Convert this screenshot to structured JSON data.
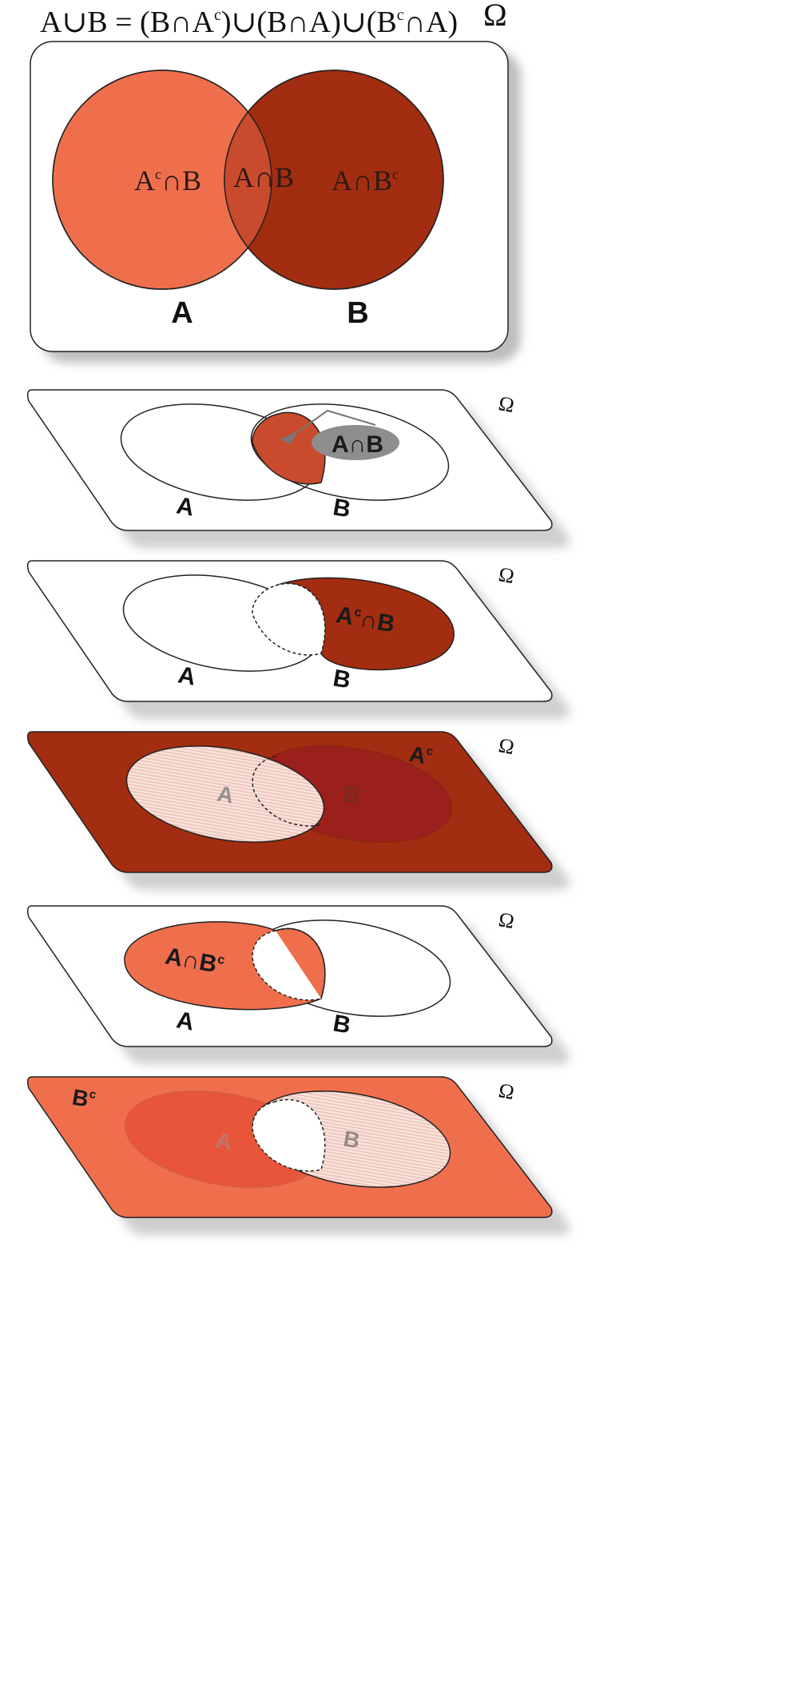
{
  "formula": {
    "lhs": "A∪B = (B∩A",
    "c1": "c",
    "mid1": ")∪(B∩A)∪(B",
    "c2": "c",
    "tail": "∩A)"
  },
  "omega": "Ω",
  "superscript_c": "c",
  "colors": {
    "light": "#ef6f4d",
    "dark": "#a32d10",
    "intersection": "#c94a2c",
    "complement_a_fill": "#f4d4cc",
    "shadow": "#cfcfcf",
    "b_in_ac": "#9b1f1a"
  },
  "main": {
    "region_ac_b": {
      "pre": "A",
      "sup": "c",
      "post": "∩B"
    },
    "region_a_b": "A∩B",
    "region_a_bc": {
      "pre": "A∩B",
      "sup": "c"
    },
    "set_a": "A",
    "set_b": "B"
  },
  "panels": [
    {
      "id": "intersection",
      "label": "A∩B",
      "set_a": "A",
      "set_b": "B"
    },
    {
      "id": "ac-and-b",
      "label_pre": "A",
      "label_sup": "c",
      "label_post": "∩B",
      "set_a": "A",
      "set_b": "B"
    },
    {
      "id": "a-complement",
      "corner_pre": "A",
      "corner_sup": "c",
      "inner_a": "A",
      "inner_b": "B"
    },
    {
      "id": "a-and-bc",
      "label_pre": "A∩B",
      "label_sup": "c",
      "set_a": "A",
      "set_b": "B"
    },
    {
      "id": "b-complement",
      "corner_pre": "B",
      "corner_sup": "c",
      "inner_a": "A",
      "inner_b": "B"
    }
  ]
}
